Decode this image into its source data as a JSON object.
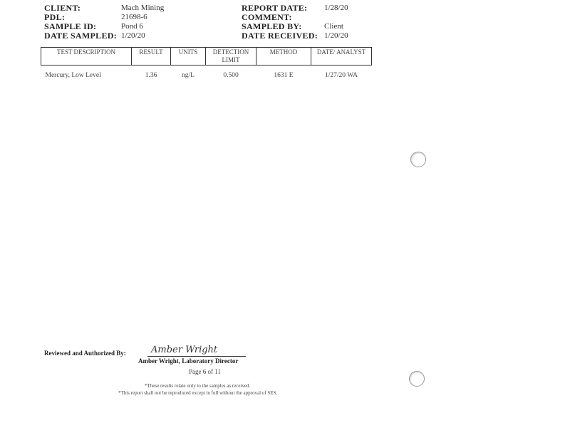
{
  "header": {
    "left": [
      {
        "label": "CLIENT:",
        "value": "Mach Mining"
      },
      {
        "label": "PDL:",
        "value": "21698-6"
      },
      {
        "label": "SAMPLE ID:",
        "value": "Pond 6"
      },
      {
        "label": "DATE SAMPLED:",
        "value": "1/20/20"
      }
    ],
    "right": [
      {
        "label": "REPORT DATE:",
        "value": "1/28/20"
      },
      {
        "label": "COMMENT:",
        "value": ""
      },
      {
        "label": "SAMPLED BY:",
        "value": "Client"
      },
      {
        "label": "DATE RECEIVED:",
        "value": "1/20/20"
      }
    ]
  },
  "table": {
    "columns": [
      "TEST DESCRIPTION",
      "RESULT",
      "UNITS",
      "DETECTION LIMIT",
      "METHOD",
      "DATE/ ANALYST"
    ],
    "rows": [
      [
        "Mercury, Low Level",
        "1.36",
        "ng/L",
        "0.500",
        "1631 E",
        "1/27/20 WA"
      ]
    ]
  },
  "signature": {
    "label": "Reviewed and Authorized By:",
    "signature": "Amber Wright",
    "name": "Amber Wright, Laboratory Director"
  },
  "page": "Page 6 of 11",
  "footnotes": [
    "*These results relate only to the samples as received.",
    "*This report shall not be reproduced except in full without the approval of SES."
  ]
}
